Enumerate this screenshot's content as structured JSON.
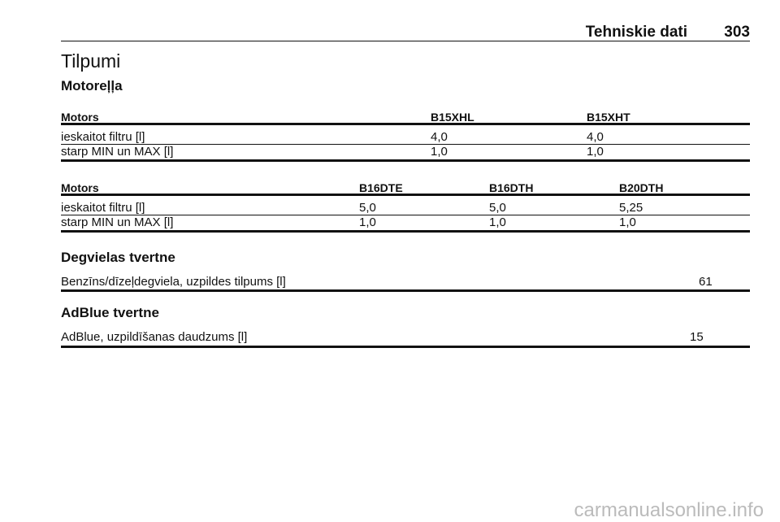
{
  "header": {
    "title": "Tehniskie dati",
    "page": "303"
  },
  "section": {
    "title": "Tilpumi"
  },
  "engine_oil": {
    "title": "Motoreļļa",
    "table1": {
      "columns": [
        "Motors",
        "B15XHL",
        "B15XHT"
      ],
      "rows": [
        [
          "ieskaitot filtru [l]",
          "4,0",
          "4,0"
        ],
        [
          "starp MIN un MAX [l]",
          "1,0",
          "1,0"
        ]
      ]
    },
    "table2": {
      "columns": [
        "Motors",
        "B16DTE",
        "B16DTH",
        "B20DTH"
      ],
      "rows": [
        [
          "ieskaitot filtru [l]",
          "5,0",
          "5,0",
          "5,25"
        ],
        [
          "starp MIN un MAX [l]",
          "1,0",
          "1,0",
          "1,0"
        ]
      ]
    }
  },
  "fuel_tank": {
    "title": "Degvielas tvertne",
    "rows": [
      [
        "Benzīns/dīzeļdegviela, uzpildes tilpums [l]",
        "61"
      ]
    ]
  },
  "adblue_tank": {
    "title": "AdBlue tvertne",
    "rows": [
      [
        "AdBlue, uzpildīšanas daudzums [l]",
        "15"
      ]
    ]
  },
  "watermark": "carmanualsonline.info"
}
